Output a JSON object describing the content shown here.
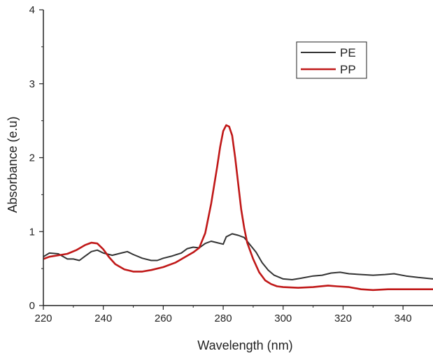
{
  "chart_data": {
    "type": "line",
    "title": "",
    "xlabel": "Wavelength (nm)",
    "ylabel": "Absorbance (e.u)",
    "xlim": [
      220,
      350
    ],
    "ylim": [
      0,
      4
    ],
    "x_ticks": [
      220,
      240,
      260,
      280,
      300,
      320,
      340
    ],
    "y_ticks": [
      0,
      1,
      2,
      3,
      4
    ],
    "grid": false,
    "legend": {
      "placement": "top-right"
    },
    "series": [
      {
        "name": "PE",
        "color": "#333333",
        "points": [
          [
            220,
            0.66
          ],
          [
            222,
            0.71
          ],
          [
            225,
            0.7
          ],
          [
            228,
            0.63
          ],
          [
            230,
            0.63
          ],
          [
            232,
            0.61
          ],
          [
            234,
            0.67
          ],
          [
            236,
            0.73
          ],
          [
            238,
            0.75
          ],
          [
            240,
            0.71
          ],
          [
            243,
            0.68
          ],
          [
            246,
            0.71
          ],
          [
            248,
            0.73
          ],
          [
            250,
            0.69
          ],
          [
            253,
            0.64
          ],
          [
            256,
            0.61
          ],
          [
            258,
            0.61
          ],
          [
            260,
            0.64
          ],
          [
            263,
            0.67
          ],
          [
            266,
            0.71
          ],
          [
            268,
            0.77
          ],
          [
            270,
            0.79
          ],
          [
            272,
            0.78
          ],
          [
            274,
            0.84
          ],
          [
            276,
            0.87
          ],
          [
            278,
            0.85
          ],
          [
            280,
            0.83
          ],
          [
            281,
            0.93
          ],
          [
            283,
            0.97
          ],
          [
            285,
            0.95
          ],
          [
            287,
            0.92
          ],
          [
            289,
            0.82
          ],
          [
            291,
            0.72
          ],
          [
            293,
            0.58
          ],
          [
            295,
            0.48
          ],
          [
            297,
            0.41
          ],
          [
            300,
            0.36
          ],
          [
            303,
            0.35
          ],
          [
            306,
            0.37
          ],
          [
            310,
            0.4
          ],
          [
            313,
            0.41
          ],
          [
            316,
            0.44
          ],
          [
            319,
            0.45
          ],
          [
            322,
            0.43
          ],
          [
            326,
            0.42
          ],
          [
            330,
            0.41
          ],
          [
            334,
            0.42
          ],
          [
            337,
            0.43
          ],
          [
            341,
            0.4
          ],
          [
            345,
            0.38
          ],
          [
            350,
            0.36
          ]
        ]
      },
      {
        "name": "PP",
        "color": "#c01818",
        "points": [
          [
            220,
            0.63
          ],
          [
            222,
            0.66
          ],
          [
            225,
            0.68
          ],
          [
            228,
            0.7
          ],
          [
            231,
            0.75
          ],
          [
            234,
            0.82
          ],
          [
            236,
            0.85
          ],
          [
            238,
            0.84
          ],
          [
            240,
            0.76
          ],
          [
            242,
            0.65
          ],
          [
            244,
            0.56
          ],
          [
            247,
            0.49
          ],
          [
            250,
            0.46
          ],
          [
            253,
            0.46
          ],
          [
            256,
            0.48
          ],
          [
            260,
            0.52
          ],
          [
            264,
            0.58
          ],
          [
            267,
            0.65
          ],
          [
            270,
            0.72
          ],
          [
            272,
            0.78
          ],
          [
            274,
            0.98
          ],
          [
            276,
            1.38
          ],
          [
            278,
            1.88
          ],
          [
            279,
            2.15
          ],
          [
            280,
            2.36
          ],
          [
            281,
            2.44
          ],
          [
            282,
            2.42
          ],
          [
            283,
            2.3
          ],
          [
            284,
            2.0
          ],
          [
            285,
            1.65
          ],
          [
            286,
            1.3
          ],
          [
            287,
            1.05
          ],
          [
            288,
            0.85
          ],
          [
            290,
            0.63
          ],
          [
            292,
            0.45
          ],
          [
            294,
            0.34
          ],
          [
            296,
            0.29
          ],
          [
            298,
            0.26
          ],
          [
            300,
            0.25
          ],
          [
            305,
            0.24
          ],
          [
            310,
            0.25
          ],
          [
            315,
            0.27
          ],
          [
            318,
            0.26
          ],
          [
            322,
            0.25
          ],
          [
            326,
            0.22
          ],
          [
            330,
            0.21
          ],
          [
            335,
            0.22
          ],
          [
            340,
            0.22
          ],
          [
            345,
            0.22
          ],
          [
            350,
            0.22
          ]
        ]
      }
    ]
  }
}
